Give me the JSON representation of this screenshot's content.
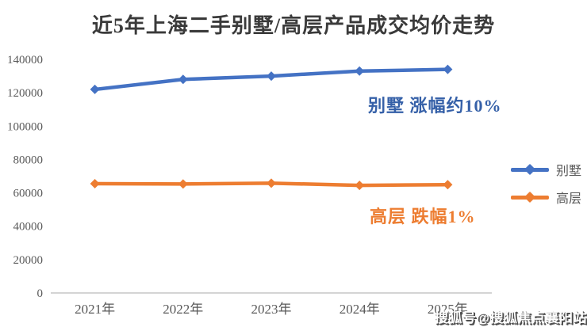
{
  "title": "近5年上海二手别墅/高层产品成交均价走势",
  "chart_data": {
    "type": "line",
    "categories": [
      "2021年",
      "2022年",
      "2023年",
      "2024年",
      "2025年"
    ],
    "series": [
      {
        "name": "别墅",
        "color": "#4472C4",
        "values": [
          122000,
          128000,
          130000,
          133000,
          134000
        ]
      },
      {
        "name": "高层",
        "color": "#ED7D31",
        "values": [
          65500,
          65300,
          65800,
          64500,
          64900
        ]
      }
    ],
    "title": "近5年上海二手别墅/高层产品成交均价走势",
    "xlabel": "",
    "ylabel": "",
    "ylim": [
      0,
      140000
    ],
    "yticks": [
      0,
      20000,
      40000,
      60000,
      80000,
      100000,
      120000,
      140000
    ],
    "grid": false,
    "legend_position": "right",
    "marker": "diamond",
    "annotations": [
      {
        "text": "别墅 涨幅约10%",
        "color": "#3560A8",
        "series": "别墅"
      },
      {
        "text": "高层 跌幅1%",
        "color": "#ED7D31",
        "series": "高层"
      }
    ]
  },
  "legend": {
    "items": [
      {
        "label": "别墅",
        "color": "#4472C4"
      },
      {
        "label": "高层",
        "color": "#ED7D31"
      }
    ]
  },
  "annotations": {
    "villa": "别墅 涨幅约10%",
    "highrise": "高层 跌幅1%"
  },
  "watermark": "搜狐号@搜狐焦点襄阳站",
  "colors": {
    "villa_line": "#4472C4",
    "highrise_line": "#ED7D31",
    "villa_annotation": "#3560A8",
    "highrise_annotation": "#ED7D31",
    "axis_text": "#595959",
    "axis_line": "#C6C6C6",
    "title_text": "#3A3A3A"
  }
}
